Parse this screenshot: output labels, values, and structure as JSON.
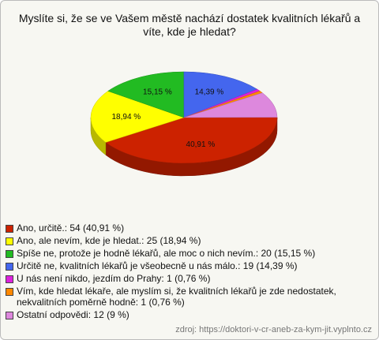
{
  "chart_data": {
    "type": "pie",
    "title": "Myslíte si, že se ve Vašem městě nachází dostatek kvalitních lékařů a víte, kde je hledat?",
    "categories": [
      "Ano, určitě.: 54 (40,91 %)",
      "Ano, ale nevím, kde je hledat.: 25 (18,94 %)",
      "Spíše ne, protože je hodně lékařů, ale moc o nich nevím.: 20 (15,15 %)",
      "Určitě ne, kvalitních lékařů je všeobecně u nás málo.: 19 (14,39 %)",
      "U nás není nikdo, jezdím do Prahy: 1 (0,76 %)",
      "Vím, kde hledat lékaře, ale myslím si, že kvalitních lékařů je zde nedostatek, nekvalitních poměrně hodně: 1 (0,76 %)",
      "Ostatní odpovědi: 12 (9 %)"
    ],
    "values": [
      40.91,
      18.94,
      15.15,
      14.39,
      0.76,
      0.76,
      9
    ],
    "value_labels": [
      "40,91 %",
      "18,94 %",
      "15,15 %",
      "14,39 %",
      null,
      null,
      null
    ],
    "colors": [
      "#cc2200",
      "#ffff00",
      "#22bb22",
      "#4466ee",
      "#dd22dd",
      "#ff8800",
      "#dd88dd"
    ],
    "source": "zdroj: https://doktori-v-cr-aneb-za-kym-jit.vyplnto.cz"
  }
}
